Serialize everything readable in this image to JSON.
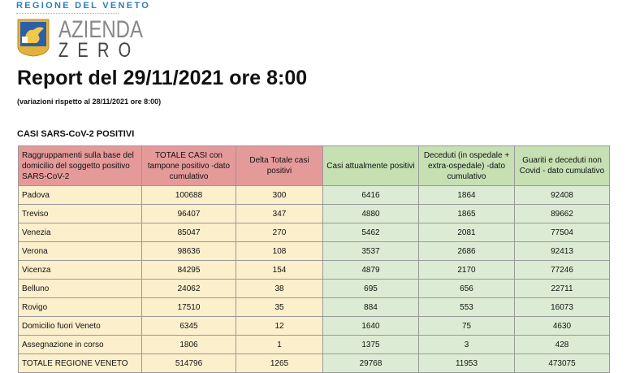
{
  "header": {
    "region": "REGIONE DEL VENETO",
    "logo_line1": "AZIENDA",
    "logo_line2": "ZERO",
    "title": "Report del 29/11/2021 ore 8:00",
    "subtitle": "(variazioni rispetto al 28/11/2021 ore 8:00)",
    "section": "CASI SARS-CoV-2 POSITIVI"
  },
  "table": {
    "columns": [
      "Raggruppamenti sulla base del domicilio del soggetto positivo SARS-CoV-2",
      "TOTALE CASI con tampone positivo -dato cumulativo",
      "Delta Totale casi positivi",
      "Casi attualmente positivi",
      "Deceduti (in ospedale + extra-ospedale) -dato cumulativo",
      "Guariti e deceduti non Covid - dato cumulativo"
    ],
    "rows": [
      [
        "Padova",
        "100688",
        "300",
        "6416",
        "1864",
        "92408"
      ],
      [
        "Treviso",
        "96407",
        "347",
        "4880",
        "1865",
        "89662"
      ],
      [
        "Venezia",
        "85047",
        "270",
        "5462",
        "2081",
        "77504"
      ],
      [
        "Verona",
        "98636",
        "108",
        "3537",
        "2686",
        "92413"
      ],
      [
        "Vicenza",
        "84295",
        "154",
        "4879",
        "2170",
        "77246"
      ],
      [
        "Belluno",
        "24062",
        "38",
        "695",
        "656",
        "22711"
      ],
      [
        "Rovigo",
        "17510",
        "35",
        "884",
        "553",
        "16073"
      ],
      [
        "Domicilio fuori Veneto",
        "6345",
        "12",
        "1640",
        "75",
        "4630"
      ],
      [
        "Assegnazione in corso",
        "1806",
        "1",
        "1375",
        "3",
        "428"
      ],
      [
        "TOTALE REGIONE VENETO",
        "514796",
        "1265",
        "29768",
        "11953",
        "473075"
      ]
    ]
  },
  "colors": {
    "header_red": "#e59a9a",
    "header_green": "#c6e0b4",
    "cell_yellow": "#fcefcb",
    "cell_green": "#dcecd4"
  }
}
